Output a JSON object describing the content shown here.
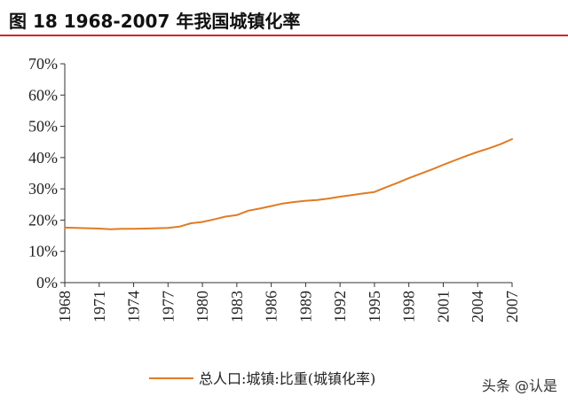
{
  "header": {
    "title": "图  18 1968-2007 年我国城镇化率"
  },
  "colors": {
    "accent_rule": "#d2232a",
    "series_line": "#e07b24"
  },
  "watermark": "头条 @认是",
  "chart_data": {
    "type": "line",
    "title": "",
    "xlabel": "",
    "ylabel": "",
    "ylim": [
      0,
      70
    ],
    "y_ticks": [
      "0%",
      "10%",
      "20%",
      "30%",
      "40%",
      "50%",
      "60%",
      "70%"
    ],
    "x_ticks": [
      "1968",
      "1971",
      "1974",
      "1977",
      "1980",
      "1983",
      "1986",
      "1989",
      "1992",
      "1995",
      "1998",
      "2001",
      "2004",
      "2007"
    ],
    "grid": false,
    "legend_position": "bottom",
    "series": [
      {
        "name": "总人口:城镇:比重(城镇化率)",
        "color": "#e07b24",
        "x": [
          1968,
          1969,
          1970,
          1971,
          1972,
          1973,
          1974,
          1975,
          1976,
          1977,
          1978,
          1979,
          1980,
          1981,
          1982,
          1983,
          1984,
          1985,
          1986,
          1987,
          1988,
          1989,
          1990,
          1991,
          1992,
          1993,
          1994,
          1995,
          1996,
          1997,
          1998,
          1999,
          2000,
          2001,
          2002,
          2003,
          2004,
          2005,
          2006,
          2007
        ],
        "values": [
          17.6,
          17.5,
          17.4,
          17.3,
          17.1,
          17.2,
          17.2,
          17.3,
          17.4,
          17.5,
          17.9,
          19.0,
          19.4,
          20.2,
          21.1,
          21.6,
          23.0,
          23.7,
          24.5,
          25.3,
          25.8,
          26.2,
          26.4,
          26.9,
          27.5,
          28.0,
          28.5,
          29.0,
          30.5,
          31.9,
          33.4,
          34.8,
          36.2,
          37.7,
          39.1,
          40.5,
          41.8,
          43.0,
          44.3,
          45.9
        ]
      }
    ]
  }
}
